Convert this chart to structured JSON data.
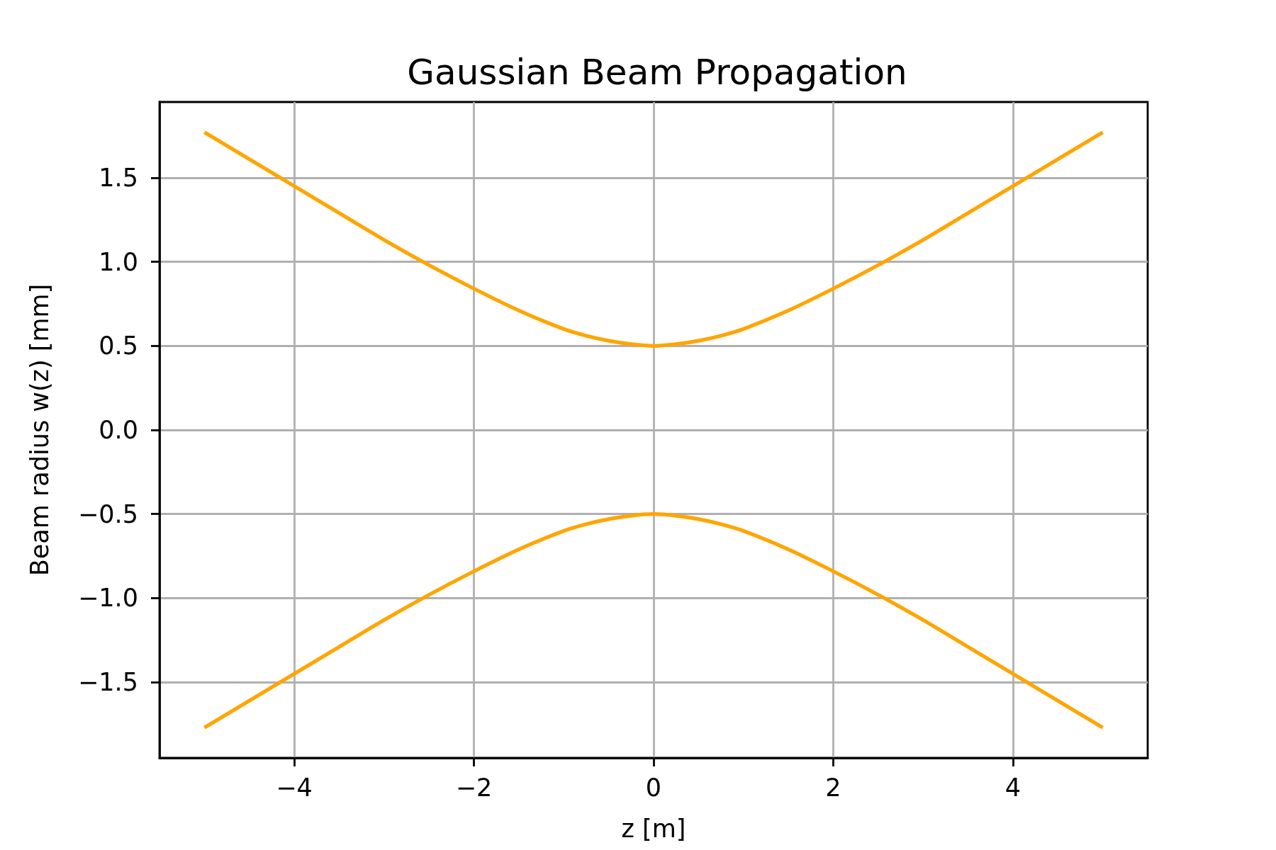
{
  "chart_data": {
    "type": "line",
    "title": "Gaussian Beam Propagation",
    "xlabel": "z [m]",
    "ylabel": "Beam radius w(z) [mm]",
    "x": [
      -5,
      -4.5,
      -4,
      -3.5,
      -3,
      -2.5,
      -2,
      -1.5,
      -1,
      -0.75,
      -0.5,
      -0.25,
      0,
      0.25,
      0.5,
      0.75,
      1,
      1.5,
      2,
      2.5,
      3,
      3.5,
      4,
      4.5,
      5
    ],
    "series": [
      {
        "color": "#ffa500",
        "values": [
          1.77,
          1.61,
          1.45,
          1.29,
          1.13,
          0.98,
          0.84,
          0.71,
          0.6,
          0.56,
          0.53,
          0.51,
          0.5,
          0.51,
          0.53,
          0.56,
          0.6,
          0.71,
          0.84,
          0.98,
          1.13,
          1.29,
          1.45,
          1.61,
          1.77
        ]
      },
      {
        "color": "#ffa500",
        "values": [
          -1.77,
          -1.61,
          -1.45,
          -1.29,
          -1.13,
          -0.98,
          -0.84,
          -0.71,
          -0.6,
          -0.56,
          -0.53,
          -0.51,
          -0.5,
          -0.51,
          -0.53,
          -0.56,
          -0.6,
          -0.71,
          -0.84,
          -0.98,
          -1.13,
          -1.29,
          -1.45,
          -1.61,
          -1.77
        ]
      }
    ],
    "xlim": [
      -5.5,
      5.5
    ],
    "ylim": [
      -1.95,
      1.95
    ],
    "xticks": [
      {
        "value": -4,
        "label": "−4"
      },
      {
        "value": -2,
        "label": "−2"
      },
      0,
      2,
      4
    ],
    "yticks": [
      {
        "value": -1.5,
        "label": "−1.5"
      },
      {
        "value": -1,
        "label": "−1.0"
      },
      {
        "value": -0.5,
        "label": "−0.5"
      },
      {
        "value": 0,
        "label": "0.0"
      },
      {
        "value": 0.5,
        "label": "0.5"
      },
      {
        "value": 1,
        "label": "1.0"
      },
      {
        "value": 1.5,
        "label": "1.5"
      }
    ],
    "grid": true,
    "line_style": "solid"
  }
}
